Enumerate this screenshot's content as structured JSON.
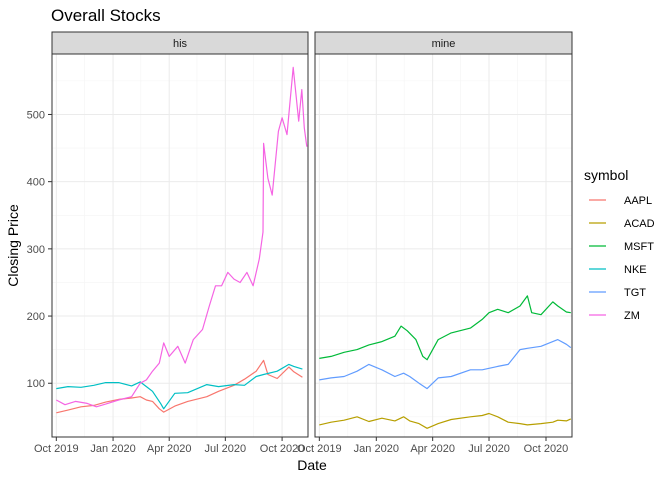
{
  "chart_data": {
    "type": "line",
    "title": "Overall Stocks",
    "xlabel": "Date",
    "ylabel": "Closing Price",
    "xlim": [
      "2019-09-24",
      "2020-11-12"
    ],
    "ylim": [
      20,
      590
    ],
    "x_ticks": [
      {
        "date": "2019-10-01",
        "label": "Oct 2019"
      },
      {
        "date": "2020-01-01",
        "label": "Jan 2020"
      },
      {
        "date": "2020-04-01",
        "label": "Apr 2020"
      },
      {
        "date": "2020-07-01",
        "label": "Jul 2020"
      },
      {
        "date": "2020-10-01",
        "label": "Oct 2020"
      }
    ],
    "y_ticks": [
      100,
      200,
      300,
      400,
      500
    ],
    "grid": true,
    "legend": {
      "title": "symbol",
      "placement": "right"
    },
    "colors": {
      "AAPL": "#F8766D",
      "ACAD": "#B79F00",
      "MSFT": "#00BA38",
      "NKE": "#00BFC4",
      "TGT": "#619CFF",
      "ZM": "#F564E3"
    },
    "panels": [
      {
        "label": "his",
        "series": [
          {
            "name": "AAPL",
            "points": [
              [
                "2019-10-01",
                56
              ],
              [
                "2019-10-20",
                60
              ],
              [
                "2019-11-10",
                65
              ],
              [
                "2019-12-01",
                67
              ],
              [
                "2019-12-20",
                72
              ],
              [
                "2020-01-10",
                76
              ],
              [
                "2020-01-31",
                78
              ],
              [
                "2020-02-14",
                80
              ],
              [
                "2020-02-24",
                75
              ],
              [
                "2020-03-05",
                73
              ],
              [
                "2020-03-16",
                62
              ],
              [
                "2020-03-23",
                57
              ],
              [
                "2020-04-10",
                66
              ],
              [
                "2020-05-01",
                73
              ],
              [
                "2020-06-01",
                80
              ],
              [
                "2020-06-20",
                88
              ],
              [
                "2020-07-15",
                97
              ],
              [
                "2020-08-01",
                106
              ],
              [
                "2020-08-20",
                118
              ],
              [
                "2020-09-01",
                134
              ],
              [
                "2020-09-08",
                113
              ],
              [
                "2020-09-23",
                107
              ],
              [
                "2020-10-12",
                124
              ],
              [
                "2020-10-20",
                117
              ],
              [
                "2020-11-03",
                109
              ]
            ]
          },
          {
            "name": "NKE",
            "points": [
              [
                "2019-10-01",
                92
              ],
              [
                "2019-10-20",
                95
              ],
              [
                "2019-11-10",
                94
              ],
              [
                "2019-12-01",
                97
              ],
              [
                "2019-12-20",
                101
              ],
              [
                "2020-01-10",
                101
              ],
              [
                "2020-01-31",
                96
              ],
              [
                "2020-02-14",
                102
              ],
              [
                "2020-02-24",
                95
              ],
              [
                "2020-03-05",
                88
              ],
              [
                "2020-03-18",
                70
              ],
              [
                "2020-03-23",
                62
              ],
              [
                "2020-04-10",
                85
              ],
              [
                "2020-05-01",
                86
              ],
              [
                "2020-06-01",
                98
              ],
              [
                "2020-06-20",
                95
              ],
              [
                "2020-07-15",
                98
              ],
              [
                "2020-08-01",
                97
              ],
              [
                "2020-08-20",
                110
              ],
              [
                "2020-09-01",
                113
              ],
              [
                "2020-09-23",
                118
              ],
              [
                "2020-10-12",
                128
              ],
              [
                "2020-10-20",
                125
              ],
              [
                "2020-11-03",
                121
              ]
            ]
          },
          {
            "name": "ZM",
            "points": [
              [
                "2019-10-01",
                75
              ],
              [
                "2019-10-15",
                68
              ],
              [
                "2019-11-01",
                73
              ],
              [
                "2019-11-20",
                70
              ],
              [
                "2019-12-05",
                65
              ],
              [
                "2019-12-20",
                69
              ],
              [
                "2020-01-10",
                75
              ],
              [
                "2020-01-31",
                80
              ],
              [
                "2020-02-14",
                100
              ],
              [
                "2020-02-24",
                105
              ],
              [
                "2020-03-05",
                118
              ],
              [
                "2020-03-16",
                130
              ],
              [
                "2020-03-23",
                160
              ],
              [
                "2020-04-01",
                140
              ],
              [
                "2020-04-15",
                155
              ],
              [
                "2020-04-27",
                130
              ],
              [
                "2020-05-10",
                165
              ],
              [
                "2020-05-25",
                180
              ],
              [
                "2020-06-05",
                215
              ],
              [
                "2020-06-15",
                245
              ],
              [
                "2020-06-25",
                245
              ],
              [
                "2020-07-05",
                265
              ],
              [
                "2020-07-15",
                255
              ],
              [
                "2020-07-25",
                250
              ],
              [
                "2020-08-05",
                265
              ],
              [
                "2020-08-15",
                245
              ],
              [
                "2020-08-25",
                285
              ],
              [
                "2020-08-31",
                325
              ],
              [
                "2020-09-01",
                457
              ],
              [
                "2020-09-08",
                405
              ],
              [
                "2020-09-15",
                380
              ],
              [
                "2020-09-25",
                475
              ],
              [
                "2020-10-01",
                495
              ],
              [
                "2020-10-09",
                470
              ],
              [
                "2020-10-19",
                570
              ],
              [
                "2020-10-28",
                490
              ],
              [
                "2020-11-02",
                537
              ],
              [
                "2020-11-06",
                480
              ],
              [
                "2020-11-10",
                452
              ]
            ]
          }
        ]
      },
      {
        "label": "mine",
        "series": [
          {
            "name": "ACAD",
            "points": [
              [
                "2019-10-01",
                38
              ],
              [
                "2019-10-20",
                42
              ],
              [
                "2019-11-10",
                45
              ],
              [
                "2019-12-01",
                50
              ],
              [
                "2019-12-20",
                43
              ],
              [
                "2020-01-10",
                48
              ],
              [
                "2020-01-31",
                44
              ],
              [
                "2020-02-14",
                50
              ],
              [
                "2020-02-24",
                44
              ],
              [
                "2020-03-10",
                40
              ],
              [
                "2020-03-23",
                33
              ],
              [
                "2020-04-10",
                40
              ],
              [
                "2020-05-01",
                46
              ],
              [
                "2020-06-01",
                50
              ],
              [
                "2020-06-20",
                52
              ],
              [
                "2020-07-01",
                55
              ],
              [
                "2020-07-15",
                50
              ],
              [
                "2020-08-01",
                42
              ],
              [
                "2020-08-20",
                40
              ],
              [
                "2020-09-01",
                38
              ],
              [
                "2020-09-23",
                40
              ],
              [
                "2020-10-12",
                42
              ],
              [
                "2020-10-20",
                45
              ],
              [
                "2020-11-03",
                44
              ],
              [
                "2020-11-10",
                47
              ]
            ]
          },
          {
            "name": "MSFT",
            "points": [
              [
                "2019-10-01",
                137
              ],
              [
                "2019-10-20",
                140
              ],
              [
                "2019-11-10",
                146
              ],
              [
                "2019-12-01",
                150
              ],
              [
                "2019-12-20",
                157
              ],
              [
                "2020-01-10",
                162
              ],
              [
                "2020-01-31",
                170
              ],
              [
                "2020-02-10",
                185
              ],
              [
                "2020-02-20",
                178
              ],
              [
                "2020-03-05",
                165
              ],
              [
                "2020-03-16",
                140
              ],
              [
                "2020-03-23",
                135
              ],
              [
                "2020-04-10",
                165
              ],
              [
                "2020-05-01",
                175
              ],
              [
                "2020-06-01",
                182
              ],
              [
                "2020-06-20",
                195
              ],
              [
                "2020-07-01",
                205
              ],
              [
                "2020-07-15",
                210
              ],
              [
                "2020-08-01",
                205
              ],
              [
                "2020-08-20",
                215
              ],
              [
                "2020-09-01",
                230
              ],
              [
                "2020-09-08",
                205
              ],
              [
                "2020-09-23",
                202
              ],
              [
                "2020-10-12",
                221
              ],
              [
                "2020-10-20",
                215
              ],
              [
                "2020-11-03",
                206
              ],
              [
                "2020-11-10",
                205
              ]
            ]
          },
          {
            "name": "TGT",
            "points": [
              [
                "2019-10-01",
                105
              ],
              [
                "2019-10-20",
                108
              ],
              [
                "2019-11-10",
                110
              ],
              [
                "2019-12-01",
                118
              ],
              [
                "2019-12-20",
                128
              ],
              [
                "2020-01-10",
                120
              ],
              [
                "2020-01-31",
                110
              ],
              [
                "2020-02-14",
                115
              ],
              [
                "2020-02-24",
                110
              ],
              [
                "2020-03-10",
                100
              ],
              [
                "2020-03-23",
                92
              ],
              [
                "2020-04-10",
                108
              ],
              [
                "2020-05-01",
                110
              ],
              [
                "2020-06-01",
                120
              ],
              [
                "2020-06-20",
                120
              ],
              [
                "2020-07-15",
                125
              ],
              [
                "2020-08-01",
                128
              ],
              [
                "2020-08-20",
                150
              ],
              [
                "2020-09-01",
                152
              ],
              [
                "2020-09-23",
                155
              ],
              [
                "2020-10-12",
                162
              ],
              [
                "2020-10-20",
                165
              ],
              [
                "2020-11-03",
                158
              ],
              [
                "2020-11-10",
                153
              ]
            ]
          }
        ]
      }
    ]
  }
}
